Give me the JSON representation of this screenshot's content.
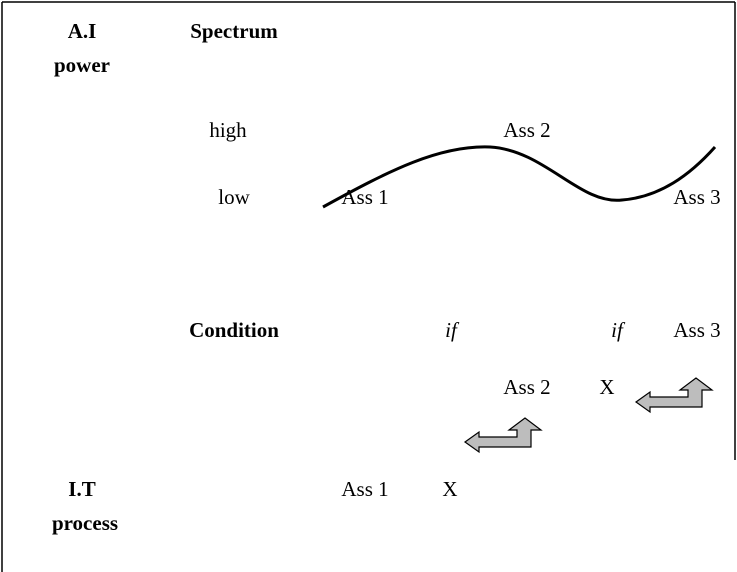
{
  "top_side": {
    "label_lines": [
      "A.I",
      "power"
    ]
  },
  "spectrum": {
    "title": "Spectrum",
    "levels": [
      "high",
      "low"
    ],
    "high_items": [
      "Ass 2"
    ],
    "low_items": [
      "Ass 1",
      "Ass 3"
    ]
  },
  "condition": {
    "title": "Condition",
    "row1": [
      "if",
      "if",
      "Ass 3"
    ],
    "row2": [
      "Ass 2",
      "X"
    ],
    "row3": [
      "Ass 1",
      "X"
    ]
  },
  "bottom_side": {
    "label_lines": [
      "I.T",
      "process"
    ]
  }
}
